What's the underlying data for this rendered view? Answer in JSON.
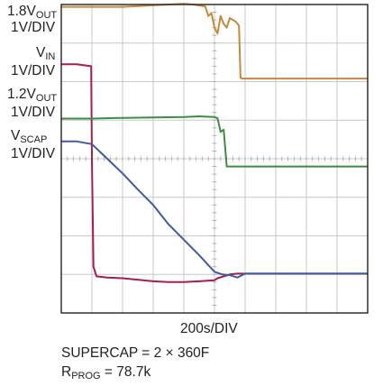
{
  "chart_data": {
    "type": "line",
    "xlabel": "200s/DIV",
    "x_unit": "s",
    "x_per_div": 200,
    "divisions_x": 10,
    "divisions_y": 8,
    "grid": true,
    "xlim": [
      0,
      2000
    ],
    "channel_labels": [
      {
        "main": "1.8V",
        "sub": "OUT",
        "scale": "1V/DIV"
      },
      {
        "main": "V",
        "sub": "IN",
        "scale": "1V/DIV"
      },
      {
        "main": "1.2V",
        "sub": "OUT",
        "scale": "1V/DIV"
      },
      {
        "main": "V",
        "sub": "SCAP",
        "scale": "1V/DIV"
      }
    ],
    "series": [
      {
        "color": "#c8883c",
        "x": [
          0,
          100,
          200,
          400,
          600,
          700,
          800,
          860,
          940,
          960,
          980,
          1000,
          1020,
          1040,
          1060,
          1080,
          1100,
          1140,
          1160,
          1170,
          1180,
          1200,
          1400,
          2000
        ],
        "y_div": [
          0.06,
          0.06,
          0.06,
          0.06,
          0.02,
          0.0,
          -0.02,
          0.0,
          0.05,
          0.3,
          0.22,
          0.6,
          0.75,
          0.3,
          0.5,
          0.6,
          0.35,
          0.45,
          0.55,
          1.9,
          1.92,
          1.92,
          1.92,
          1.92
        ]
      },
      {
        "color": "#a81e44",
        "x": [
          0,
          100,
          195,
          200,
          210,
          230,
          300,
          400,
          600,
          700,
          800,
          900,
          1000,
          1020,
          1100,
          1150,
          1400,
          2000
        ],
        "y_div": [
          1.55,
          1.55,
          1.6,
          4.0,
          6.8,
          7.05,
          7.08,
          7.1,
          7.18,
          7.2,
          7.2,
          7.18,
          7.15,
          7.1,
          7.0,
          6.98,
          6.98,
          6.98
        ]
      },
      {
        "color": "#3c8c44",
        "x": [
          0,
          200,
          400,
          600,
          800,
          900,
          1000,
          1020,
          1040,
          1060,
          1080,
          1100,
          1400,
          2000
        ],
        "y_div": [
          2.96,
          2.96,
          2.94,
          2.93,
          2.92,
          2.9,
          2.92,
          2.95,
          3.3,
          3.25,
          4.2,
          4.2,
          4.2,
          4.2
        ]
      },
      {
        "color": "#3e5aa8",
        "x": [
          0,
          100,
          200,
          300,
          400,
          500,
          600,
          700,
          800,
          900,
          1000,
          1050,
          1100,
          1150,
          1200,
          1400,
          2000
        ],
        "y_div": [
          3.55,
          3.55,
          3.62,
          4.0,
          4.38,
          4.8,
          5.2,
          5.7,
          6.1,
          6.5,
          6.93,
          7.0,
          7.02,
          7.08,
          6.98,
          6.98,
          6.98
        ]
      }
    ]
  },
  "notes": {
    "supercap": "SUPERCAP = 2 × 360F",
    "rprog_main": "R",
    "rprog_sub": "PROG",
    "rprog_value": " = 78.7k"
  }
}
